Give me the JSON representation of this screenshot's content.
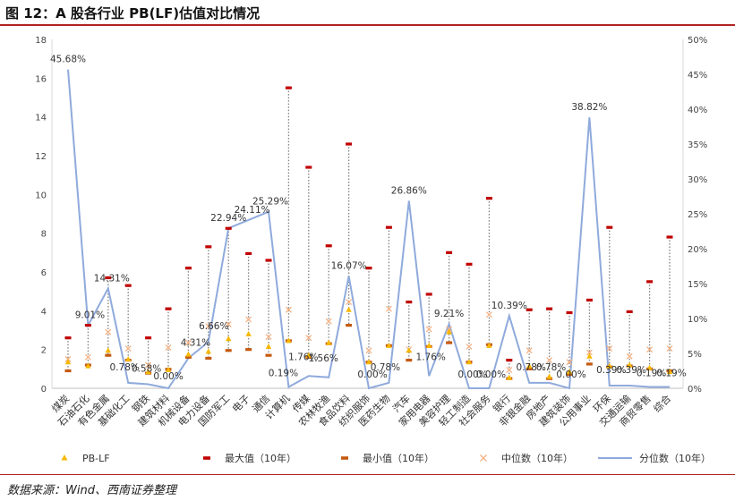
{
  "figure": {
    "title": "图 12：A 股各行业 PB(LF)估值对比情况",
    "source": "数据来源：Wind、西南证券整理"
  },
  "colors": {
    "pb": "#f5b800",
    "max": "#c00000",
    "min": "#c55a11",
    "median": "#f4b183",
    "percentile": "#8faadc",
    "rule": "#b22222"
  },
  "chart_data": {
    "type": "line",
    "categories": [
      "煤炭",
      "石油石化",
      "有色金属",
      "基础化工",
      "钢铁",
      "建筑材料",
      "机械设备",
      "电力设备",
      "国防军工",
      "电子",
      "通信",
      "计算机",
      "传媒",
      "农林牧渔",
      "食品饮料",
      "纺织服饰",
      "医药生物",
      "汽车",
      "家用电器",
      "美容护理",
      "轻工制造",
      "社会服务",
      "银行",
      "非银金融",
      "房地产",
      "建筑装饰",
      "公用事业",
      "环保",
      "交通运输",
      "商贸零售",
      "综合"
    ],
    "y_left": {
      "ylim": [
        0,
        18
      ],
      "ticks": [
        0,
        2,
        4,
        6,
        8,
        10,
        12,
        14,
        16,
        18
      ]
    },
    "y_right": {
      "ylim": [
        0,
        50
      ],
      "ticks": [
        "0%",
        "5%",
        "10%",
        "15%",
        "20%",
        "25%",
        "30%",
        "35%",
        "40%",
        "45%",
        "50%"
      ]
    },
    "series": [
      {
        "name": "PB-LF",
        "axis": "left",
        "marker": "triangle",
        "values": [
          1.35,
          1.15,
          1.95,
          1.5,
          0.85,
          0.95,
          1.75,
          1.9,
          2.55,
          2.8,
          2.15,
          2.45,
          1.7,
          2.35,
          4.05,
          1.35,
          2.2,
          1.95,
          2.2,
          2.9,
          1.35,
          2.2,
          0.55,
          1.15,
          0.6,
          0.85,
          1.65,
          1.15,
          1.2,
          1.05,
          0.85
        ]
      },
      {
        "name": "最大值（10年）",
        "axis": "left",
        "marker": "dash",
        "values": [
          2.6,
          3.25,
          5.7,
          5.3,
          2.6,
          4.1,
          6.2,
          7.3,
          8.25,
          6.95,
          6.6,
          15.5,
          11.4,
          7.35,
          12.6,
          6.2,
          8.3,
          4.45,
          4.85,
          7.0,
          6.4,
          9.8,
          1.45,
          4.05,
          4.1,
          3.9,
          4.55,
          8.3,
          3.95,
          5.5,
          7.8
        ]
      },
      {
        "name": "最小值（10年）",
        "axis": "left",
        "marker": "dash",
        "values": [
          0.9,
          1.2,
          1.7,
          1.45,
          0.78,
          0.98,
          1.6,
          1.55,
          1.95,
          2.0,
          1.7,
          2.45,
          1.6,
          2.3,
          3.25,
          1.35,
          2.2,
          1.45,
          2.15,
          2.35,
          1.35,
          2.25,
          0.5,
          1.0,
          0.5,
          0.72,
          1.25,
          1.1,
          1.15,
          1.0,
          0.9
        ]
      },
      {
        "name": "中位数（10年）",
        "axis": "left",
        "marker": "x",
        "values": [
          1.5,
          1.6,
          2.9,
          2.05,
          1.2,
          2.1,
          2.35,
          3.2,
          3.3,
          3.55,
          2.65,
          4.05,
          2.6,
          3.45,
          4.45,
          1.95,
          4.1,
          2.0,
          3.05,
          3.05,
          2.15,
          3.8,
          0.95,
          1.95,
          1.45,
          1.35,
          1.85,
          2.05,
          1.65,
          2.0,
          2.05
        ]
      },
      {
        "name": "分位数（10年）",
        "axis": "right",
        "marker": "line",
        "values": [
          45.68,
          9.01,
          14.31,
          0.78,
          0.58,
          0.0,
          4.31,
          6.66,
          22.94,
          24.11,
          25.29,
          0.19,
          1.76,
          1.56,
          16.07,
          0.0,
          0.78,
          26.86,
          1.76,
          9.21,
          0.0,
          0.0,
          10.39,
          0.78,
          0.78,
          0.0,
          38.82,
          0.39,
          0.39,
          0.19,
          0.19
        ],
        "labels": [
          "45.68%",
          "9.01%",
          "14.31%",
          "0.78%",
          "0.58%",
          "0.00%",
          "4.31%",
          "6.66%",
          "22.94%",
          "24.11%",
          "25.29%",
          "0.19%",
          "1.76%",
          "1.56%",
          "16.07%",
          "0.00%",
          "0.78%",
          "26.86%",
          "1.76%",
          "9.21%",
          "0.00%",
          "0.00%",
          "10.39%",
          "0.78%",
          "0.78%",
          "0.00%",
          "38.82%",
          "0.39%",
          "0.39%",
          "0.19%",
          "0.19%"
        ]
      }
    ],
    "legend_position": "bottom",
    "grid": false
  }
}
